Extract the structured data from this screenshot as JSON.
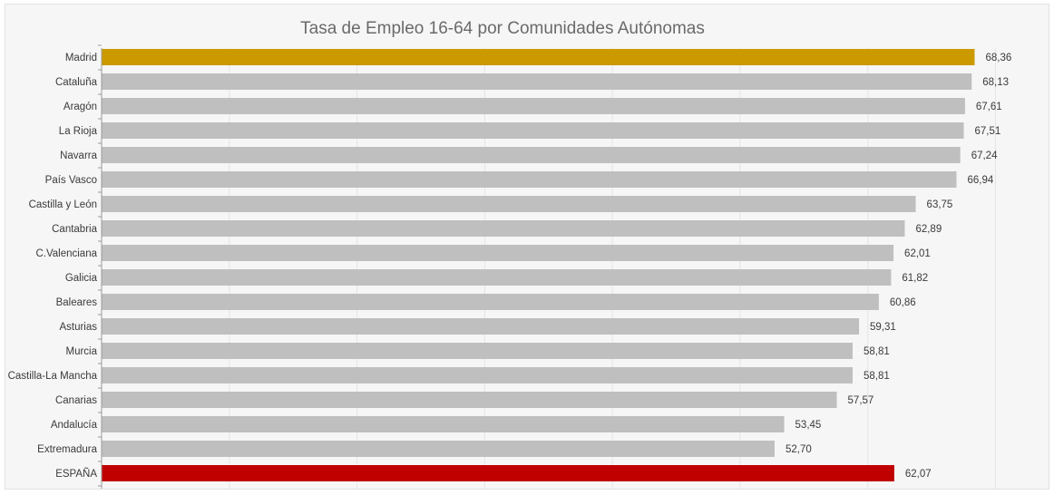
{
  "chart_data": {
    "type": "bar",
    "orientation": "horizontal",
    "title": "Tasa de Empleo 16-64 por Comunidades Autónomas",
    "xlabel": "",
    "ylabel": "",
    "xlim": [
      0,
      70.6
    ],
    "grid": true,
    "legend": "none",
    "categories": [
      "Madrid",
      "Cataluña",
      "Aragón",
      "La Rioja",
      "Navarra",
      "País Vasco",
      "Castilla y León",
      "Cantabria",
      "C.Valenciana",
      "Galicia",
      "Baleares",
      "Asturias",
      "Murcia",
      "Castilla-La Mancha",
      "Canarias",
      "Andalucía",
      "Extremadura",
      "ESPAÑA"
    ],
    "values": [
      68.36,
      68.13,
      67.61,
      67.51,
      67.24,
      66.94,
      63.75,
      62.89,
      62.01,
      61.82,
      60.86,
      59.31,
      58.81,
      58.81,
      57.57,
      53.45,
      52.7,
      62.07
    ],
    "value_labels": [
      "68,36",
      "68,13",
      "67,61",
      "67,51",
      "67,24",
      "66,94",
      "63,75",
      "62,89",
      "62,01",
      "61,82",
      "60,86",
      "59,31",
      "58,81",
      "58,81",
      "57,57",
      "53,45",
      "52,70",
      "62,07"
    ],
    "colors": {
      "default": "#bfbfbf",
      "highlight": "#cc9900",
      "total": "#c00000",
      "grid": "#e4e4e4",
      "axis": "#9a9a9a"
    },
    "bar_color_roles": [
      "highlight",
      "default",
      "default",
      "default",
      "default",
      "default",
      "default",
      "default",
      "default",
      "default",
      "default",
      "default",
      "default",
      "default",
      "default",
      "default",
      "default",
      "total"
    ]
  }
}
